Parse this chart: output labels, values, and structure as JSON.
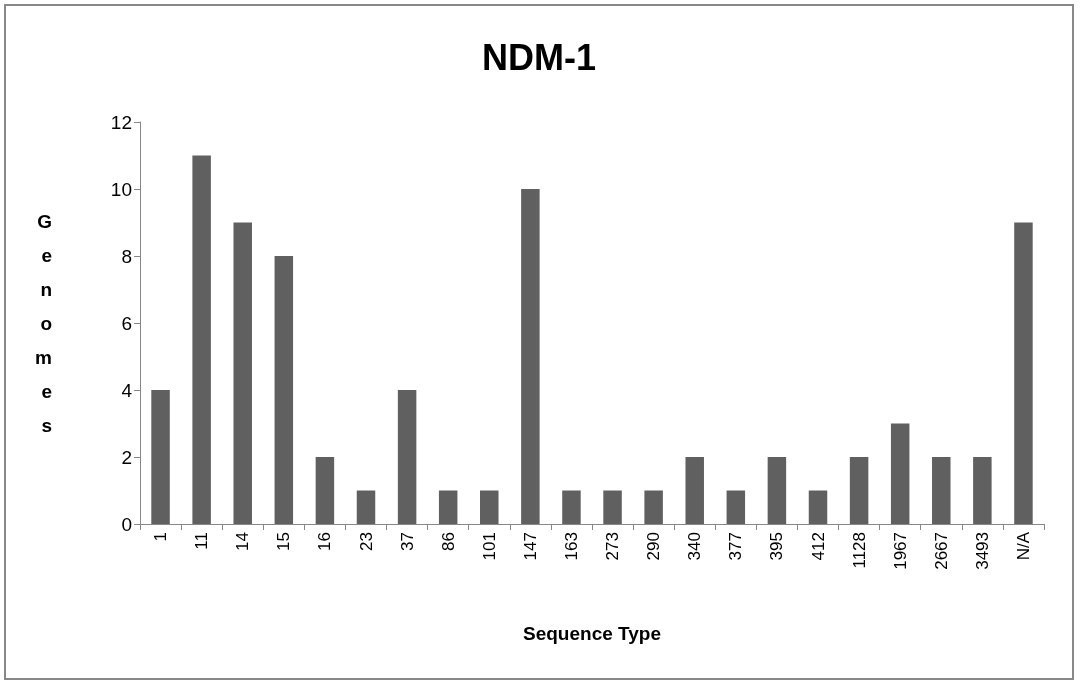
{
  "chart_data": {
    "type": "bar",
    "title": "NDM-1",
    "xlabel": "Sequence Type",
    "ylabel": "Genomes",
    "categories": [
      "1",
      "11",
      "14",
      "15",
      "16",
      "23",
      "37",
      "86",
      "101",
      "147",
      "163",
      "273",
      "290",
      "340",
      "377",
      "395",
      "412",
      "1128",
      "1967",
      "2667",
      "3493",
      "N/A"
    ],
    "values": [
      4,
      11,
      9,
      8,
      2,
      1,
      4,
      1,
      1,
      10,
      1,
      1,
      1,
      2,
      1,
      2,
      1,
      2,
      3,
      2,
      2,
      9
    ],
    "color": "#606060",
    "ylim": [
      0,
      12
    ],
    "yticks": [
      0,
      2,
      4,
      6,
      8,
      10,
      12
    ],
    "grid": false
  }
}
